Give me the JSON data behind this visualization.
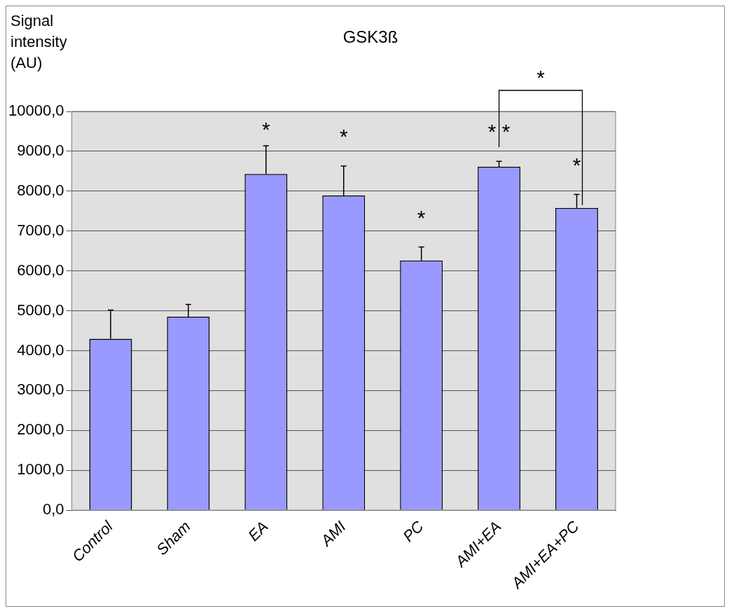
{
  "chart_data": {
    "type": "bar",
    "title": "GSK3ß",
    "ylabel": "Signal intensity (AU)",
    "categories": [
      "Control",
      "Sham",
      "EA",
      "AMI",
      "PC",
      "AMI+EA",
      "AMI+EA+PC"
    ],
    "values": [
      4300,
      4850,
      8430,
      7890,
      6260,
      8610,
      7580
    ],
    "errors": [
      720,
      310,
      710,
      740,
      340,
      140,
      340
    ],
    "color": "#9999ff",
    "ylim": [
      0,
      10000
    ],
    "yticks": [
      {
        "value": 0,
        "label": "0,0"
      },
      {
        "value": 1000,
        "label": "1000,0"
      },
      {
        "value": 2000,
        "label": "2000,0"
      },
      {
        "value": 3000,
        "label": "3000,0"
      },
      {
        "value": 4000,
        "label": "4000,0"
      },
      {
        "value": 5000,
        "label": "5000,0"
      },
      {
        "value": 6000,
        "label": "6000,0"
      },
      {
        "value": 7000,
        "label": "7000,0"
      },
      {
        "value": 8000,
        "label": "8000,0"
      },
      {
        "value": 9000,
        "label": "9000,0"
      },
      {
        "value": 10000,
        "label": "10000,0"
      }
    ],
    "grid": "y",
    "annotations": [
      {
        "text": "*",
        "x": "EA",
        "y": 8430
      },
      {
        "text": "*",
        "x": "AMI",
        "y": 7890
      },
      {
        "text": "*",
        "x": "PC",
        "y": 6260
      },
      {
        "text": "* *",
        "x": "AMI+EA",
        "y": 8610
      },
      {
        "text": "*",
        "x": "AMI+EA+PC",
        "y": 7580
      },
      "*"
    ]
  }
}
